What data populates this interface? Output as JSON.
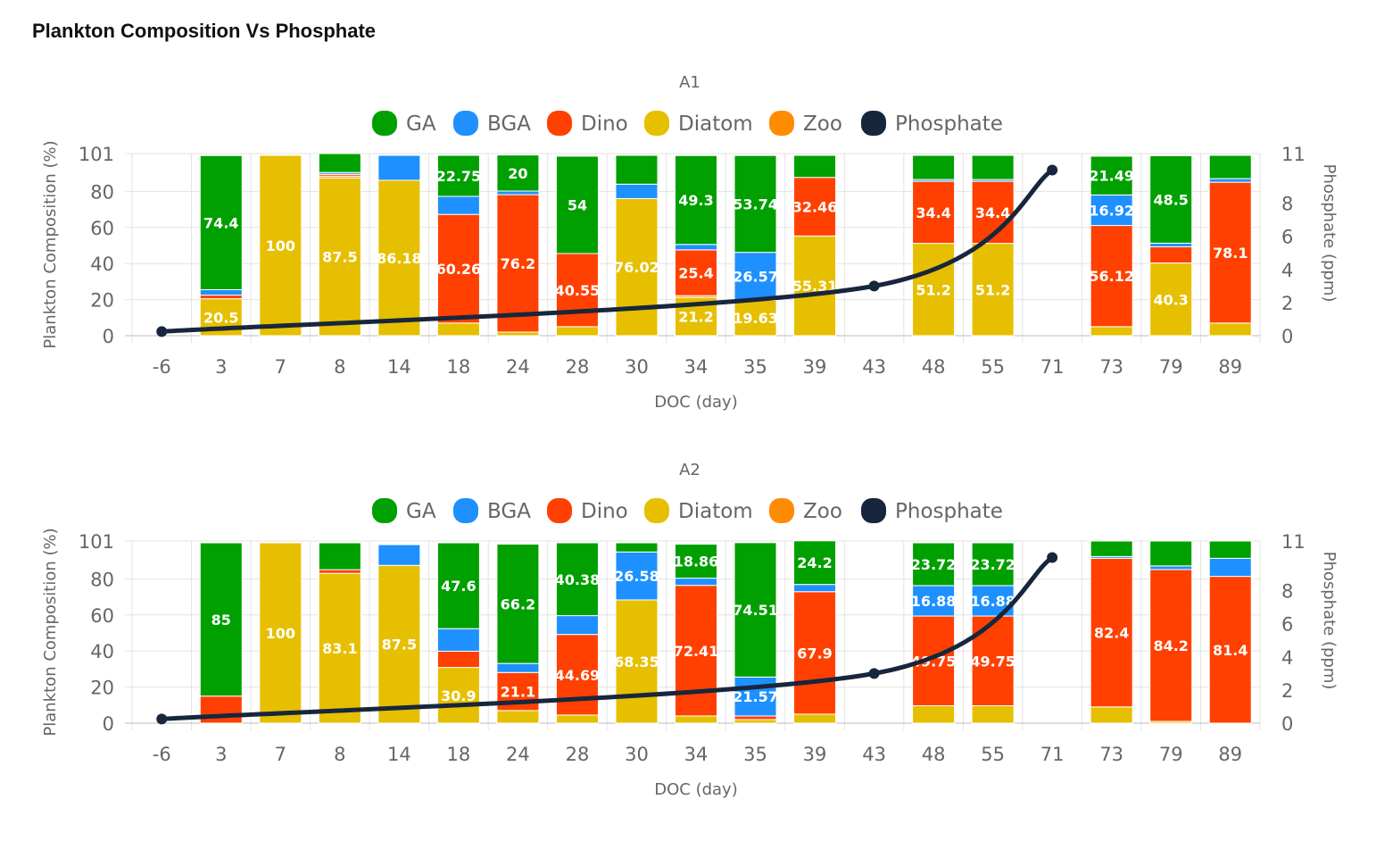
{
  "page_title": "Plankton Composition Vs Phosphate",
  "chart_data": [
    {
      "type": "bar",
      "stacked": true,
      "title": "A1",
      "xlabel": "DOC (day)",
      "ylabel": "Plankton Composition (%)",
      "y2label": "Phosphate (ppm)",
      "ylim": [
        0,
        101
      ],
      "y2lim": [
        0,
        11
      ],
      "y_ticks": [
        "0",
        "20",
        "40",
        "60",
        "80",
        "101"
      ],
      "y2_ticks": [
        "0",
        "2",
        "4",
        "6",
        "8",
        "11"
      ],
      "legend_position": "top-center",
      "categories": [
        "-6",
        "3",
        "7",
        "8",
        "14",
        "18",
        "24",
        "28",
        "30",
        "34",
        "35",
        "39",
        "43",
        "48",
        "55",
        "71",
        "73",
        "79",
        "89"
      ],
      "series": [
        {
          "name": "Diatom",
          "color": "#e6bf00",
          "values": [
            0,
            20.5,
            100,
            87.5,
            86.18,
            7,
            2,
            5,
            76.02,
            21.2,
            19.63,
            55.31,
            0,
            51.2,
            51.2,
            0,
            5,
            40.3,
            7
          ],
          "labels": [
            "",
            "20.5",
            "100",
            "87.5",
            "86.18",
            "",
            "",
            "",
            "76.02",
            "21.2",
            "19.63",
            "55.31",
            "",
            "51.2",
            "51.2",
            "",
            "",
            "40.3",
            ""
          ]
        },
        {
          "name": "Zoo",
          "color": "#ff8c00",
          "values": [
            0,
            0,
            0,
            1,
            0,
            0,
            0,
            0,
            0,
            1,
            0,
            0,
            0,
            0,
            0,
            0,
            0,
            0,
            0
          ],
          "labels": [
            "",
            "",
            "",
            "",
            "",
            "",
            "",
            "",
            "",
            "",
            "",
            "",
            "",
            "",
            "",
            "",
            "",
            "",
            ""
          ]
        },
        {
          "name": "Dino",
          "color": "#ff4000",
          "values": [
            0,
            2,
            0,
            1,
            0,
            60.26,
            76.2,
            40.55,
            0,
            25.4,
            0,
            32.46,
            0,
            34.4,
            34.4,
            0,
            56.12,
            9,
            78.1
          ],
          "labels": [
            "",
            "",
            "",
            "",
            "",
            "60.26",
            "76.2",
            "40.55",
            "",
            "25.4",
            "",
            "32.46",
            "",
            "34.4",
            "34.4",
            "",
            "56.12",
            "",
            "78.1"
          ]
        },
        {
          "name": "BGA",
          "color": "#1e90ff",
          "values": [
            0,
            3,
            0,
            1,
            13.82,
            10,
            2,
            0,
            8,
            3,
            26.57,
            0,
            0,
            1,
            1,
            0,
            16.92,
            2,
            2
          ],
          "labels": [
            "",
            "",
            "",
            "",
            "",
            "",
            "",
            "",
            "",
            "",
            "26.57",
            "",
            "",
            "",
            "",
            "",
            "16.92",
            "",
            ""
          ]
        },
        {
          "name": "GA",
          "color": "#00a000",
          "values": [
            0,
            74.4,
            0,
            10.5,
            0,
            22.75,
            20,
            54,
            15.98,
            49.3,
            53.74,
            12.23,
            0,
            13.4,
            13.4,
            0,
            21.49,
            48.5,
            12.9
          ],
          "labels": [
            "",
            "74.4",
            "",
            "",
            "",
            "22.75",
            "20",
            "54",
            "",
            "49.3",
            "53.74",
            "",
            "",
            "",
            "",
            "",
            "21.49",
            "48.5",
            ""
          ]
        }
      ],
      "line": {
        "name": "Phosphate",
        "color": "#17263c",
        "axis": "right",
        "x": [
          "-6",
          "43",
          "71"
        ],
        "values": [
          0.25,
          3.0,
          10.0
        ]
      }
    },
    {
      "type": "bar",
      "stacked": true,
      "title": "A2",
      "xlabel": "DOC (day)",
      "ylabel": "Plankton Composition (%)",
      "y2label": "Phosphate (ppm)",
      "ylim": [
        0,
        101
      ],
      "y2lim": [
        0,
        11
      ],
      "y_ticks": [
        "0",
        "20",
        "40",
        "60",
        "80",
        "101"
      ],
      "y2_ticks": [
        "0",
        "2",
        "4",
        "6",
        "8",
        "11"
      ],
      "legend_position": "top-center",
      "categories": [
        "-6",
        "3",
        "7",
        "8",
        "14",
        "18",
        "24",
        "28",
        "30",
        "34",
        "35",
        "39",
        "43",
        "48",
        "55",
        "71",
        "73",
        "79",
        "89"
      ],
      "series": [
        {
          "name": "Diatom",
          "color": "#e6bf00",
          "values": [
            0,
            0,
            100,
            83.1,
            87.5,
            30.9,
            7,
            4.5,
            68.35,
            4,
            2,
            5,
            0,
            9.65,
            9.65,
            0,
            9,
            1,
            0
          ],
          "labels": [
            "",
            "",
            "100",
            "83.1",
            "87.5",
            "30.9",
            "",
            "",
            "68.35",
            "",
            "",
            "",
            "",
            "",
            "",
            "",
            "",
            "",
            ""
          ]
        },
        {
          "name": "Zoo",
          "color": "#ff8c00",
          "values": [
            0,
            0,
            0,
            0,
            0,
            0,
            0,
            0,
            0,
            0,
            0,
            0,
            0,
            0,
            0,
            0,
            0,
            0,
            0
          ],
          "labels": [
            "",
            "",
            "",
            "",
            "",
            "",
            "",
            "",
            "",
            "",
            "",
            "",
            "",
            "",
            "",
            "",
            "",
            "",
            ""
          ]
        },
        {
          "name": "Dino",
          "color": "#ff4000",
          "values": [
            0,
            15,
            0,
            2,
            0,
            9,
            21.1,
            44.69,
            0,
            72.41,
            2,
            67.9,
            0,
            49.75,
            49.75,
            0,
            82.4,
            84.2,
            81.4
          ],
          "labels": [
            "",
            "",
            "",
            "",
            "",
            "",
            "21.1",
            "44.69",
            "",
            "72.41",
            "",
            "67.9",
            "",
            "49.75",
            "49.75",
            "",
            "82.4",
            "84.2",
            "81.4"
          ]
        },
        {
          "name": "BGA",
          "color": "#1e90ff",
          "values": [
            0,
            0,
            0,
            0,
            11.5,
            12.5,
            5,
            10.43,
            26.58,
            4,
            21.57,
            4,
            0,
            16.88,
            16.88,
            0,
            1,
            2,
            10
          ],
          "labels": [
            "",
            "",
            "",
            "",
            "",
            "",
            "",
            "",
            "26.58",
            "",
            "21.57",
            "",
            "",
            "16.88",
            "16.88",
            "",
            "",
            "",
            ""
          ]
        },
        {
          "name": "GA",
          "color": "#00a000",
          "values": [
            0,
            85,
            0,
            14.9,
            0,
            47.6,
            66.2,
            40.38,
            5.07,
            18.86,
            74.51,
            24.2,
            0,
            23.72,
            23.72,
            0,
            8.6,
            13.8,
            9.6
          ],
          "labels": [
            "",
            "85",
            "",
            "",
            "",
            "47.6",
            "66.2",
            "40.38",
            "",
            "18.86",
            "74.51",
            "24.2",
            "",
            "23.72",
            "23.72",
            "",
            "",
            "",
            ""
          ]
        }
      ],
      "line": {
        "name": "Phosphate",
        "color": "#17263c",
        "axis": "right",
        "x": [
          "-6",
          "43",
          "71"
        ],
        "values": [
          0.25,
          3.0,
          10.0
        ]
      }
    }
  ],
  "legend_order": [
    "GA",
    "BGA",
    "Dino",
    "Diatom",
    "Zoo",
    "Phosphate"
  ]
}
